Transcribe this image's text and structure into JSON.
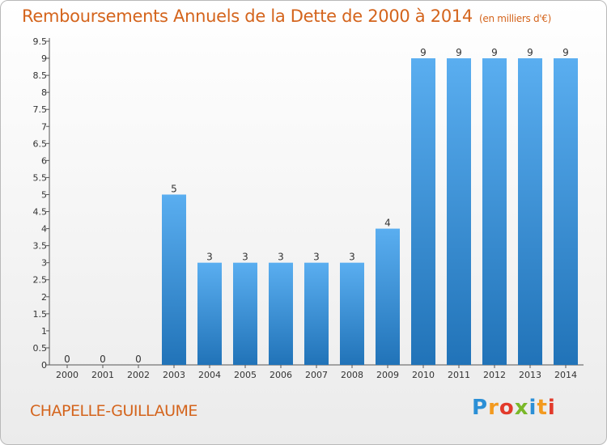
{
  "title": "Remboursements Annuels de la Dette de 2000 à 2014",
  "unit": "(en milliers d'€)",
  "location": "CHAPELLE-GUILLAUME",
  "logo": {
    "letters": [
      "P",
      "r",
      "o",
      "x",
      "i",
      "t",
      "i"
    ],
    "colors": [
      "#2b8fd6",
      "#f39a1f",
      "#e23a2b",
      "#7ab829",
      "#2b8fd6",
      "#f39a1f",
      "#e23a2b"
    ]
  },
  "colors": {
    "bar_light": "#5aaef0",
    "bar_dark": "#2173b8",
    "title": "#d4641c"
  },
  "chart_data": {
    "type": "bar",
    "categories": [
      "2000",
      "2001",
      "2002",
      "2003",
      "2004",
      "2005",
      "2006",
      "2007",
      "2008",
      "2009",
      "2010",
      "2011",
      "2012",
      "2013",
      "2014"
    ],
    "values": [
      0,
      0,
      0,
      5,
      3,
      3,
      3,
      3,
      3,
      4,
      9,
      9,
      9,
      9,
      9
    ],
    "data_labels": [
      "0",
      "0",
      "0",
      "5",
      "3",
      "3",
      "3",
      "3",
      "3",
      "4",
      "9",
      "9",
      "9",
      "9",
      "9"
    ],
    "yticks": [
      "0",
      "0.5",
      "1",
      "1.5",
      "2",
      "2.5",
      "3",
      "3.5",
      "4",
      "4.5",
      "5",
      "5.5",
      "6",
      "6.5",
      "7",
      "7.5",
      "8",
      "8.5",
      "9",
      "9.5"
    ],
    "ylim": [
      0,
      9.5
    ],
    "grid": false
  }
}
